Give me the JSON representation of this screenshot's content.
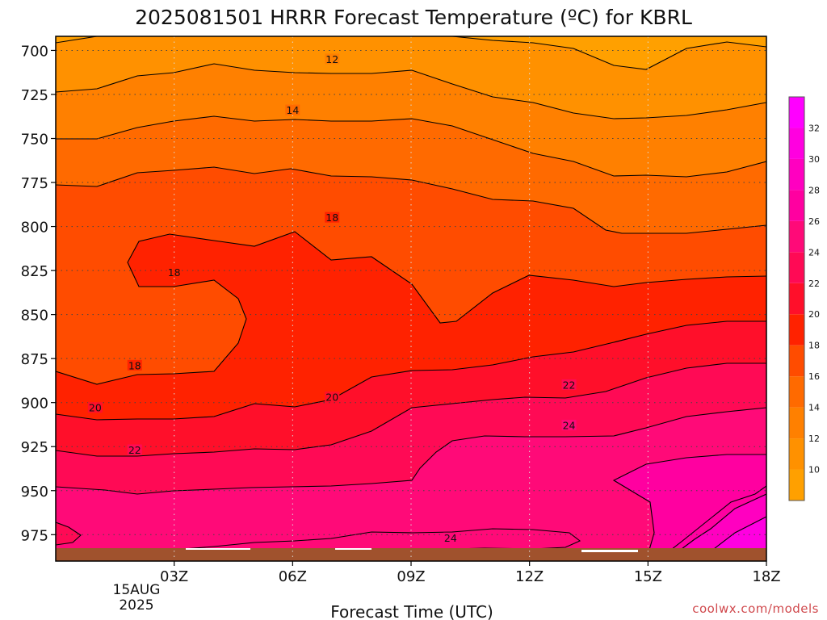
{
  "chart_data": {
    "type": "contour",
    "title": "2025081501 HRRR Forecast Temperature (ºC) for KBRL",
    "xlabel": "Forecast Time (UTC)",
    "ylabel": "",
    "x_ticks": [
      "03Z",
      "06Z",
      "09Z",
      "12Z",
      "15Z",
      "18Z"
    ],
    "x_date_lines": [
      "15AUG",
      "2025"
    ],
    "y_ticks": [
      700,
      725,
      750,
      775,
      800,
      825,
      850,
      875,
      900,
      925,
      950,
      975
    ],
    "y_range": [
      692,
      990
    ],
    "x_range": [
      0,
      18
    ],
    "units": "ºC",
    "colorbar": {
      "ticks": [
        10,
        12,
        14,
        16,
        18,
        20,
        22,
        24,
        26,
        28,
        30,
        32
      ],
      "bins": [
        {
          "lo": 8,
          "hi": 10,
          "color": "#ffa000"
        },
        {
          "lo": 10,
          "hi": 12,
          "color": "#ff9100"
        },
        {
          "lo": 12,
          "hi": 14,
          "color": "#ff8000"
        },
        {
          "lo": 14,
          "hi": 16,
          "color": "#ff6a00"
        },
        {
          "lo": 16,
          "hi": 18,
          "color": "#ff4c00"
        },
        {
          "lo": 18,
          "hi": 20,
          "color": "#ff2200"
        },
        {
          "lo": 20,
          "hi": 22,
          "color": "#ff0f2a"
        },
        {
          "lo": 22,
          "hi": 24,
          "color": "#ff0a55"
        },
        {
          "lo": 24,
          "hi": 26,
          "color": "#ff0a78"
        },
        {
          "lo": 26,
          "hi": 28,
          "color": "#ff00a0"
        },
        {
          "lo": 28,
          "hi": 30,
          "color": "#ff00c0"
        },
        {
          "lo": 30,
          "hi": 32,
          "color": "#ff00e0"
        },
        {
          "lo": 32,
          "hi": 34,
          "color": "#ff00ff"
        }
      ]
    },
    "contour_labels": [
      {
        "text": "12",
        "x": 7,
        "p": 705
      },
      {
        "text": "14",
        "x": 6,
        "p": 734
      },
      {
        "text": "18",
        "x": 7,
        "p": 795
      },
      {
        "text": "18",
        "x": 3,
        "p": 826
      },
      {
        "text": "18",
        "x": 2,
        "p": 879
      },
      {
        "text": "20",
        "x": 1,
        "p": 903
      },
      {
        "text": "20",
        "x": 7,
        "p": 897
      },
      {
        "text": "22",
        "x": 2,
        "p": 927
      },
      {
        "text": "22",
        "x": 13,
        "p": 890
      },
      {
        "text": "24",
        "x": 13,
        "p": 913
      },
      {
        "text": "24",
        "x": 10,
        "p": 977
      }
    ],
    "ground": {
      "p_surface": 984,
      "color": "#a0522d"
    },
    "grid": true
  },
  "credit": "coolwx.com/models"
}
